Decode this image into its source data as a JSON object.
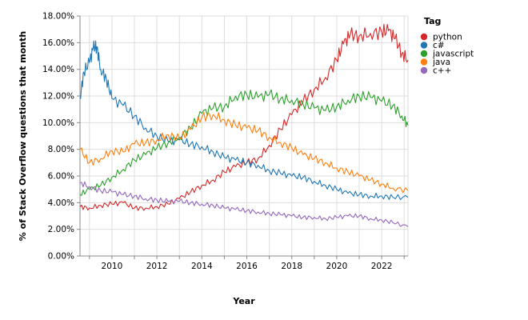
{
  "chart_data": {
    "type": "line",
    "title": "",
    "xlabel": "Year",
    "ylabel": "% of Stack Overflow questions that month",
    "xlim": [
      2008.58,
      2023.17
    ],
    "ylim": [
      0,
      18
    ],
    "x_ticks": [
      2010,
      2012,
      2014,
      2016,
      2018,
      2020,
      2022
    ],
    "x_tick_labels": [
      "2010",
      "2012",
      "2014",
      "2016",
      "2018",
      "2020",
      "2022"
    ],
    "y_ticks": [
      0,
      2,
      4,
      6,
      8,
      10,
      12,
      14,
      16,
      18
    ],
    "y_tick_labels": [
      "0.00%",
      "2.00%",
      "4.00%",
      "6.00%",
      "8.00%",
      "10.00%",
      "12.00%",
      "14.00%",
      "16.00%",
      "18.00%"
    ],
    "grid": true,
    "legend": {
      "title": "Tag",
      "placement": "right"
    },
    "series": [
      {
        "name": "python",
        "color": "#d62728",
        "x": [
          2008.58,
          2009.0,
          2009.5,
          2010.0,
          2010.5,
          2011.0,
          2011.5,
          2012.0,
          2012.5,
          2013.0,
          2013.5,
          2014.0,
          2014.5,
          2015.0,
          2015.5,
          2016.0,
          2016.5,
          2017.0,
          2017.5,
          2018.0,
          2018.5,
          2019.0,
          2019.5,
          2020.0,
          2020.3,
          2020.6,
          2021.0,
          2021.5,
          2022.0,
          2022.3,
          2022.6,
          2022.9,
          2023.17
        ],
        "values": [
          3.7,
          3.6,
          3.8,
          3.9,
          4.0,
          3.6,
          3.6,
          3.7,
          3.9,
          4.3,
          4.8,
          5.3,
          5.7,
          6.3,
          6.7,
          7.0,
          7.3,
          8.3,
          9.5,
          10.6,
          11.6,
          12.5,
          13.4,
          14.7,
          15.9,
          16.6,
          16.5,
          16.7,
          16.8,
          16.9,
          16.3,
          15.2,
          14.7
        ]
      },
      {
        "name": "c#",
        "color": "#1f77b4",
        "x": [
          2008.58,
          2008.75,
          2009.0,
          2009.17,
          2009.33,
          2009.5,
          2009.75,
          2010.0,
          2010.5,
          2011.0,
          2011.5,
          2012.0,
          2012.5,
          2013.0,
          2013.5,
          2014.0,
          2014.5,
          2015.0,
          2015.5,
          2016.0,
          2016.5,
          2017.0,
          2017.5,
          2018.0,
          2018.5,
          2019.0,
          2019.5,
          2020.0,
          2020.5,
          2021.0,
          2021.5,
          2022.0,
          2022.5,
          2023.17
        ],
        "values": [
          11.8,
          13.8,
          14.5,
          15.6,
          15.7,
          14.0,
          13.3,
          11.8,
          11.3,
          10.5,
          9.6,
          9.0,
          8.6,
          8.7,
          8.4,
          8.2,
          7.8,
          7.4,
          7.2,
          7.0,
          6.8,
          6.4,
          6.2,
          6.0,
          5.9,
          5.6,
          5.3,
          5.0,
          4.7,
          4.6,
          4.5,
          4.5,
          4.4,
          4.4
        ]
      },
      {
        "name": "javascript",
        "color": "#2ca02c",
        "x": [
          2008.58,
          2009.0,
          2009.5,
          2010.0,
          2010.5,
          2011.0,
          2011.5,
          2012.0,
          2012.5,
          2013.0,
          2013.5,
          2014.0,
          2014.5,
          2015.0,
          2015.5,
          2016.0,
          2016.5,
          2017.0,
          2017.5,
          2018.0,
          2018.5,
          2019.0,
          2019.5,
          2020.0,
          2020.5,
          2021.0,
          2021.5,
          2022.0,
          2022.5,
          2022.9,
          2023.17
        ],
        "values": [
          4.6,
          5.0,
          5.3,
          5.9,
          6.5,
          7.2,
          7.6,
          8.1,
          8.5,
          8.9,
          9.6,
          10.7,
          11.1,
          11.2,
          12.0,
          12.1,
          11.9,
          12.1,
          11.8,
          11.7,
          11.4,
          11.1,
          10.9,
          11.2,
          11.7,
          12.0,
          11.9,
          11.6,
          11.3,
          10.5,
          9.8
        ]
      },
      {
        "name": "java",
        "color": "#ff7f0e",
        "x": [
          2008.58,
          2009.0,
          2009.5,
          2010.0,
          2010.5,
          2011.0,
          2011.5,
          2012.0,
          2012.5,
          2013.0,
          2013.5,
          2014.0,
          2014.5,
          2015.0,
          2015.5,
          2016.0,
          2016.5,
          2017.0,
          2017.5,
          2018.0,
          2018.5,
          2019.0,
          2019.5,
          2020.0,
          2020.5,
          2021.0,
          2021.5,
          2022.0,
          2022.5,
          2023.17
        ],
        "values": [
          8.0,
          7.0,
          7.3,
          7.9,
          7.8,
          8.4,
          8.5,
          8.7,
          9.1,
          8.8,
          9.5,
          10.4,
          10.6,
          10.2,
          9.8,
          9.6,
          9.4,
          8.9,
          8.5,
          8.1,
          7.6,
          7.3,
          7.0,
          6.6,
          6.3,
          6.0,
          5.7,
          5.4,
          5.1,
          4.9
        ]
      },
      {
        "name": "c++",
        "color": "#9467bd",
        "x": [
          2008.58,
          2009.0,
          2009.5,
          2010.0,
          2010.5,
          2011.0,
          2011.5,
          2012.0,
          2012.5,
          2013.0,
          2013.5,
          2014.0,
          2014.5,
          2015.0,
          2015.5,
          2016.0,
          2016.5,
          2017.0,
          2017.5,
          2018.0,
          2018.5,
          2019.0,
          2019.5,
          2020.0,
          2020.5,
          2021.0,
          2021.5,
          2022.0,
          2022.5,
          2023.17
        ],
        "values": [
          5.5,
          5.2,
          4.9,
          4.8,
          4.6,
          4.5,
          4.3,
          4.2,
          4.1,
          4.1,
          4.0,
          3.9,
          3.8,
          3.6,
          3.5,
          3.4,
          3.3,
          3.2,
          3.1,
          3.0,
          2.9,
          2.9,
          2.8,
          2.9,
          3.0,
          3.0,
          2.8,
          2.7,
          2.5,
          2.2
        ]
      }
    ]
  }
}
